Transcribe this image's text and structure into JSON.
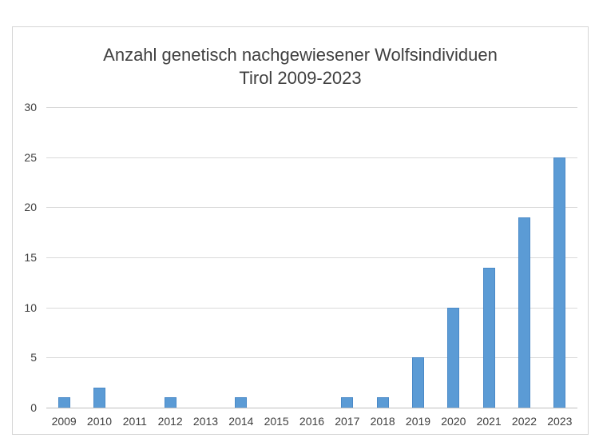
{
  "chart_data": {
    "type": "bar",
    "title": "Anzahl genetisch nachgewiesener Wolfsindividuen Tirol 2009-2023",
    "title_lines": [
      "Anzahl genetisch nachgewiesener Wolfsindividuen",
      "Tirol 2009-2023"
    ],
    "categories": [
      "2009",
      "2010",
      "2011",
      "2012",
      "2013",
      "2014",
      "2015",
      "2016",
      "2017",
      "2018",
      "2019",
      "2020",
      "2021",
      "2022",
      "2023"
    ],
    "values": [
      1,
      2,
      0,
      1,
      0,
      1,
      0,
      0,
      1,
      1,
      5,
      10,
      14,
      19,
      25
    ],
    "xlabel": "",
    "ylabel": "",
    "ylim": [
      0,
      30
    ],
    "yticks": [
      0,
      5,
      10,
      15,
      20,
      25,
      30
    ],
    "grid": true,
    "legend_position": "none",
    "colors": {
      "bar_fill": "#5b9bd5",
      "bar_border": "#4a89c7",
      "gridline": "#d9d9d9",
      "axis_line": "#bfbfbf",
      "text": "#404040",
      "frame_border": "#d6d6d6",
      "background": "#ffffff"
    }
  }
}
